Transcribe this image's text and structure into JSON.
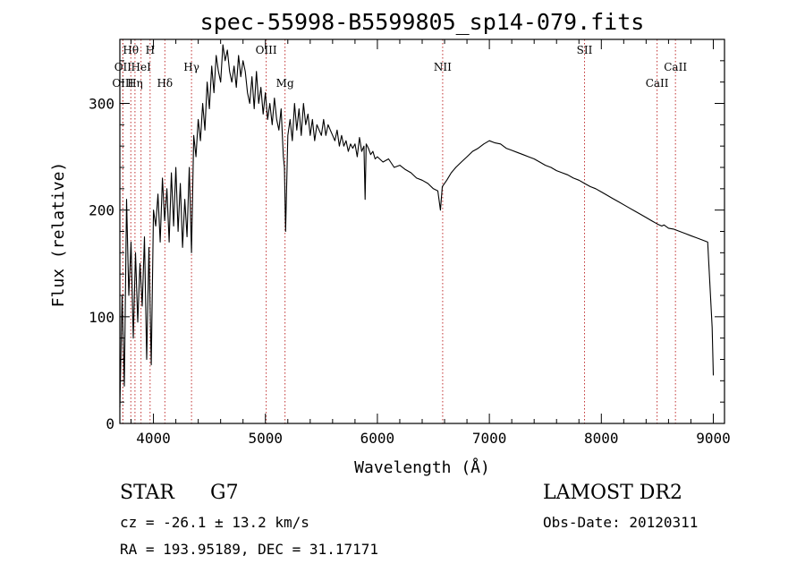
{
  "chart_data": {
    "type": "line",
    "title": "spec-55998-B5599805_sp14-079.fits",
    "xlabel": "Wavelength (Å)",
    "ylabel": "Flux (relative)",
    "xlim": [
      3700,
      9100
    ],
    "ylim": [
      0,
      360
    ],
    "x_ticks": [
      4000,
      5000,
      6000,
      7000,
      8000,
      9000
    ],
    "x_tick_labels": [
      "4000",
      "5000",
      "6000",
      "7000",
      "8000",
      "9000"
    ],
    "y_ticks": [
      0,
      100,
      200,
      300
    ],
    "y_tick_labels": [
      "0",
      "100",
      "200",
      "300"
    ],
    "grid": false,
    "series": [
      {
        "color": "#000000",
        "x": [
          3700,
          3720,
          3740,
          3760,
          3780,
          3800,
          3820,
          3840,
          3860,
          3880,
          3900,
          3920,
          3940,
          3960,
          3980,
          4000,
          4020,
          4040,
          4060,
          4080,
          4100,
          4120,
          4140,
          4160,
          4180,
          4200,
          4220,
          4240,
          4260,
          4280,
          4300,
          4320,
          4340,
          4360,
          4380,
          4400,
          4420,
          4440,
          4460,
          4480,
          4500,
          4520,
          4540,
          4560,
          4580,
          4600,
          4620,
          4640,
          4660,
          4680,
          4700,
          4720,
          4740,
          4760,
          4780,
          4800,
          4820,
          4840,
          4860,
          4880,
          4900,
          4920,
          4940,
          4960,
          4980,
          5000,
          5020,
          5040,
          5060,
          5080,
          5100,
          5120,
          5140,
          5160,
          5170,
          5180,
          5200,
          5220,
          5240,
          5260,
          5280,
          5300,
          5320,
          5340,
          5360,
          5380,
          5400,
          5420,
          5440,
          5460,
          5480,
          5500,
          5520,
          5540,
          5560,
          5580,
          5600,
          5620,
          5640,
          5660,
          5680,
          5700,
          5720,
          5740,
          5760,
          5780,
          5800,
          5820,
          5840,
          5860,
          5880,
          5890,
          5900,
          5920,
          5940,
          5960,
          5980,
          6000,
          6050,
          6100,
          6150,
          6200,
          6250,
          6300,
          6350,
          6400,
          6450,
          6500,
          6540,
          6563,
          6580,
          6620,
          6660,
          6700,
          6750,
          6800,
          6850,
          6900,
          6950,
          7000,
          7050,
          7100,
          7150,
          7200,
          7250,
          7300,
          7350,
          7400,
          7450,
          7500,
          7550,
          7600,
          7650,
          7700,
          7750,
          7800,
          7850,
          7900,
          7950,
          8000,
          8050,
          8100,
          8150,
          8200,
          8250,
          8300,
          8350,
          8400,
          8450,
          8500,
          8540,
          8560,
          8600,
          8650,
          8700,
          8750,
          8800,
          8850,
          8900,
          8950,
          8990,
          9000
        ],
        "y": [
          15,
          120,
          35,
          210,
          120,
          170,
          80,
          160,
          95,
          150,
          110,
          175,
          60,
          165,
          55,
          200,
          185,
          215,
          170,
          230,
          190,
          220,
          170,
          235,
          185,
          240,
          180,
          225,
          165,
          210,
          175,
          240,
          160,
          270,
          250,
          285,
          265,
          300,
          275,
          320,
          295,
          335,
          310,
          345,
          330,
          320,
          355,
          340,
          350,
          330,
          320,
          335,
          315,
          345,
          325,
          340,
          330,
          310,
          300,
          325,
          295,
          330,
          300,
          315,
          290,
          310,
          285,
          300,
          280,
          305,
          285,
          275,
          295,
          250,
          240,
          180,
          270,
          285,
          265,
          300,
          275,
          295,
          270,
          300,
          280,
          290,
          270,
          285,
          265,
          280,
          275,
          270,
          285,
          270,
          280,
          275,
          270,
          265,
          275,
          260,
          270,
          260,
          265,
          255,
          262,
          258,
          262,
          250,
          268,
          255,
          260,
          210,
          262,
          258,
          252,
          255,
          248,
          250,
          245,
          248,
          240,
          242,
          238,
          235,
          230,
          228,
          225,
          220,
          218,
          200,
          222,
          228,
          235,
          240,
          245,
          250,
          255,
          258,
          262,
          265,
          263,
          262,
          258,
          256,
          254,
          252,
          250,
          248,
          245,
          242,
          240,
          237,
          235,
          233,
          230,
          228,
          225,
          222,
          220,
          217,
          214,
          211,
          208,
          205,
          202,
          199,
          196,
          193,
          190,
          187,
          185,
          186,
          183,
          182,
          180,
          178,
          176,
          174,
          172,
          170,
          90,
          45
        ]
      }
    ],
    "line_markers": [
      {
        "label": "Hθ",
        "x": 3798,
        "row": 1
      },
      {
        "label": "OII",
        "x": 3727,
        "row": 2
      },
      {
        "label": "OIII",
        "x": 3727,
        "row": 3
      },
      {
        "label": "H",
        "x": 3970,
        "row": 1
      },
      {
        "label": "HeI",
        "x": 3889,
        "row": 2
      },
      {
        "label": "Hη",
        "x": 3835,
        "row": 3
      },
      {
        "label": "Hδ",
        "x": 4102,
        "row": 3
      },
      {
        "label": "Hγ",
        "x": 4340,
        "row": 2
      },
      {
        "label": "OIII",
        "x": 5007,
        "row": 1
      },
      {
        "label": "Mg",
        "x": 5175,
        "row": 3
      },
      {
        "label": "NII",
        "x": 6583,
        "row": 2
      },
      {
        "label": "SII",
        "x": 7850,
        "row": 1
      },
      {
        "label": "CaII",
        "x": 8662,
        "row": 2
      },
      {
        "label": "CaII",
        "x": 8498,
        "row": 3
      }
    ],
    "marker_color": "#c03030"
  },
  "footer": {
    "object_class": "STAR",
    "subclass": "G7",
    "survey": "LAMOST DR2",
    "redshift": "cz = -26.1 ± 13.2 km/s",
    "obs_date": "Obs-Date: 20120311",
    "coordinates": "RA = 193.95189, DEC =  31.17171"
  }
}
